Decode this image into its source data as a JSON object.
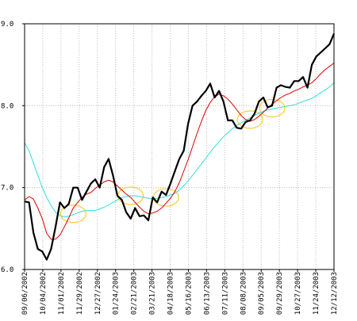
{
  "chart_data": {
    "type": "line",
    "title": "",
    "xlabel": "",
    "ylabel": "",
    "ylim": [
      6.0,
      9.0
    ],
    "y_ticks": [
      {
        "value": 6.0,
        "label": "6.0"
      },
      {
        "value": 7.0,
        "label": "7.0"
      },
      {
        "value": 8.0,
        "label": "8.0"
      },
      {
        "value": 9.0,
        "label": "9.0"
      }
    ],
    "x_ticks": [
      "09/06/2002",
      "10/04/2002",
      "11/01/2002",
      "11/29/2002",
      "12/27/2002",
      "01/24/2003",
      "02/21/2003",
      "03/21/2003",
      "04/18/2003",
      "05/16/2003",
      "06/13/2003",
      "07/11/2003",
      "08/08/2003",
      "09/05/2003",
      "09/29/2003",
      "10/27/2003",
      "11/24/2003",
      "12/12/2003"
    ],
    "grid": true,
    "x_index_range": [
      0,
      70
    ],
    "series": [
      {
        "key": "price",
        "color": "#000000",
        "values": [
          6.83,
          6.82,
          6.45,
          6.25,
          6.22,
          6.12,
          6.25,
          6.52,
          6.82,
          6.75,
          6.8,
          7.0,
          7.0,
          6.85,
          6.95,
          7.05,
          7.1,
          7.0,
          7.25,
          7.35,
          7.15,
          6.9,
          6.85,
          6.7,
          6.62,
          6.75,
          6.65,
          6.66,
          6.6,
          6.88,
          6.82,
          6.95,
          6.91,
          7.05,
          7.2,
          7.35,
          7.45,
          7.78,
          8.0,
          8.05,
          8.12,
          8.18,
          8.27,
          8.1,
          8.18,
          8.05,
          7.82,
          7.82,
          7.73,
          7.72,
          7.8,
          7.82,
          7.9,
          8.05,
          8.1,
          7.98,
          8.0,
          8.22,
          8.25,
          8.23,
          8.22,
          8.3,
          8.3,
          8.35,
          8.22,
          8.5,
          8.6,
          8.65,
          8.7,
          8.75,
          8.88
        ]
      },
      {
        "key": "avg-short",
        "color": "#dd0000",
        "values": [
          6.85,
          6.89,
          6.86,
          6.75,
          6.62,
          6.44,
          6.37,
          6.37,
          6.42,
          6.52,
          6.63,
          6.75,
          6.82,
          6.88,
          6.92,
          6.94,
          6.99,
          7.03,
          7.07,
          7.09,
          7.07,
          7.02,
          6.97,
          6.92,
          6.88,
          6.82,
          6.76,
          6.71,
          6.68,
          6.69,
          6.71,
          6.75,
          6.81,
          6.87,
          6.95,
          7.06,
          7.2,
          7.34,
          7.5,
          7.66,
          7.81,
          7.94,
          8.04,
          8.11,
          8.14,
          8.12,
          8.08,
          8.02,
          7.95,
          7.88,
          7.83,
          7.81,
          7.83,
          7.87,
          7.92,
          7.97,
          8.02,
          8.06,
          8.1,
          8.13,
          8.15,
          8.18,
          8.2,
          8.23,
          8.25,
          8.28,
          8.33,
          8.39,
          8.44,
          8.48,
          8.52
        ]
      },
      {
        "key": "avg-long",
        "color": "#33dddd",
        "values": [
          7.55,
          7.45,
          7.3,
          7.15,
          7.0,
          6.88,
          6.78,
          6.7,
          6.66,
          6.64,
          6.65,
          6.67,
          6.69,
          6.71,
          6.72,
          6.72,
          6.72,
          6.74,
          6.76,
          6.79,
          6.82,
          6.85,
          6.88,
          6.89,
          6.9,
          6.9,
          6.89,
          6.88,
          6.87,
          6.86,
          6.87,
          6.88,
          6.89,
          6.91,
          6.93,
          6.97,
          7.02,
          7.08,
          7.15,
          7.22,
          7.29,
          7.36,
          7.43,
          7.5,
          7.56,
          7.62,
          7.67,
          7.72,
          7.76,
          7.79,
          7.82,
          7.85,
          7.88,
          7.91,
          7.93,
          7.95,
          7.96,
          7.97,
          7.98,
          7.99,
          8.0,
          8.01,
          8.03,
          8.05,
          8.07,
          8.09,
          8.12,
          8.16,
          8.19,
          8.23,
          8.28
        ]
      }
    ],
    "annotations": [
      {
        "type": "ellipse",
        "color": "#ffcc33",
        "x_index": 11,
        "y": 6.68
      },
      {
        "type": "ellipse",
        "color": "#ffcc33",
        "x_index": 24,
        "y": 6.9
      },
      {
        "type": "ellipse",
        "color": "#ffcc33",
        "x_index": 32,
        "y": 6.88
      },
      {
        "type": "ellipse",
        "color": "#ffcc33",
        "x_index": 51,
        "y": 7.83
      },
      {
        "type": "ellipse",
        "color": "#ffcc33",
        "x_index": 56,
        "y": 7.97
      }
    ]
  }
}
